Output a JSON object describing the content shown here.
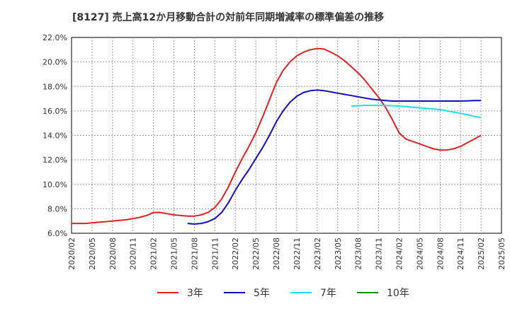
{
  "chart_data": {
    "type": "line",
    "title": "[8127]  売上高12か月移動合計の対前年同期増減率の標準偏差の推移",
    "xlabel": "",
    "ylabel": "",
    "x_ticks": [
      "2020/02",
      "2020/05",
      "2020/08",
      "2020/11",
      "2021/02",
      "2021/05",
      "2021/08",
      "2021/11",
      "2022/02",
      "2022/05",
      "2022/08",
      "2022/11",
      "2023/02",
      "2023/05",
      "2023/08",
      "2023/11",
      "2024/02",
      "2024/05",
      "2024/08",
      "2024/11",
      "2025/02",
      "2025/05"
    ],
    "y_ticks": [
      "6.0%",
      "8.0%",
      "10.0%",
      "12.0%",
      "14.0%",
      "16.0%",
      "18.0%",
      "20.0%",
      "22.0%"
    ],
    "ylim": [
      6.0,
      22.0
    ],
    "grid": true,
    "legend_position": "bottom",
    "series": [
      {
        "name": "3年",
        "color": "#dd2222",
        "values": [
          [
            "2020/02",
            6.8
          ],
          [
            "2020/03",
            6.8
          ],
          [
            "2020/04",
            6.8
          ],
          [
            "2020/05",
            6.85
          ],
          [
            "2020/06",
            6.9
          ],
          [
            "2020/07",
            6.95
          ],
          [
            "2020/08",
            7.0
          ],
          [
            "2020/09",
            7.05
          ],
          [
            "2020/10",
            7.1
          ],
          [
            "2020/11",
            7.2
          ],
          [
            "2020/12",
            7.3
          ],
          [
            "2021/01",
            7.45
          ],
          [
            "2021/02",
            7.7
          ],
          [
            "2021/03",
            7.7
          ],
          [
            "2021/04",
            7.6
          ],
          [
            "2021/05",
            7.5
          ],
          [
            "2021/06",
            7.45
          ],
          [
            "2021/07",
            7.4
          ],
          [
            "2021/08",
            7.4
          ],
          [
            "2021/09",
            7.5
          ],
          [
            "2021/10",
            7.7
          ],
          [
            "2021/11",
            8.1
          ],
          [
            "2021/12",
            8.8
          ],
          [
            "2022/01",
            9.8
          ],
          [
            "2022/02",
            11.0
          ],
          [
            "2022/03",
            12.1
          ],
          [
            "2022/04",
            13.1
          ],
          [
            "2022/05",
            14.2
          ],
          [
            "2022/06",
            15.5
          ],
          [
            "2022/07",
            16.9
          ],
          [
            "2022/08",
            18.3
          ],
          [
            "2022/09",
            19.3
          ],
          [
            "2022/10",
            20.0
          ],
          [
            "2022/11",
            20.5
          ],
          [
            "2022/12",
            20.8
          ],
          [
            "2023/01",
            21.0
          ],
          [
            "2023/02",
            21.1
          ],
          [
            "2023/03",
            21.05
          ],
          [
            "2023/04",
            20.8
          ],
          [
            "2023/05",
            20.5
          ],
          [
            "2023/06",
            20.1
          ],
          [
            "2023/07",
            19.6
          ],
          [
            "2023/08",
            19.1
          ],
          [
            "2023/09",
            18.5
          ],
          [
            "2023/10",
            17.8
          ],
          [
            "2023/11",
            17.1
          ],
          [
            "2023/12",
            16.3
          ],
          [
            "2024/01",
            15.3
          ],
          [
            "2024/02",
            14.2
          ],
          [
            "2024/03",
            13.7
          ],
          [
            "2024/04",
            13.5
          ],
          [
            "2024/05",
            13.3
          ],
          [
            "2024/06",
            13.1
          ],
          [
            "2024/07",
            12.9
          ],
          [
            "2024/08",
            12.8
          ],
          [
            "2024/09",
            12.8
          ],
          [
            "2024/10",
            12.9
          ],
          [
            "2024/11",
            13.1
          ],
          [
            "2024/12",
            13.4
          ],
          [
            "2025/01",
            13.7
          ],
          [
            "2025/02",
            14.0
          ]
        ]
      },
      {
        "name": "5年",
        "color": "#1111bb",
        "values": [
          [
            "2021/07",
            6.8
          ],
          [
            "2021/08",
            6.75
          ],
          [
            "2021/09",
            6.8
          ],
          [
            "2021/10",
            6.95
          ],
          [
            "2021/11",
            7.2
          ],
          [
            "2021/12",
            7.7
          ],
          [
            "2022/01",
            8.5
          ],
          [
            "2022/02",
            9.5
          ],
          [
            "2022/03",
            10.4
          ],
          [
            "2022/04",
            11.2
          ],
          [
            "2022/05",
            12.1
          ],
          [
            "2022/06",
            13.0
          ],
          [
            "2022/07",
            14.0
          ],
          [
            "2022/08",
            15.1
          ],
          [
            "2022/09",
            16.0
          ],
          [
            "2022/10",
            16.7
          ],
          [
            "2022/11",
            17.2
          ],
          [
            "2022/12",
            17.5
          ],
          [
            "2023/01",
            17.65
          ],
          [
            "2023/02",
            17.7
          ],
          [
            "2023/03",
            17.65
          ],
          [
            "2023/04",
            17.55
          ],
          [
            "2023/05",
            17.45
          ],
          [
            "2023/06",
            17.35
          ],
          [
            "2023/07",
            17.25
          ],
          [
            "2023/08",
            17.15
          ],
          [
            "2023/09",
            17.05
          ],
          [
            "2023/10",
            16.95
          ],
          [
            "2023/11",
            16.9
          ],
          [
            "2023/12",
            16.85
          ],
          [
            "2024/01",
            16.8
          ],
          [
            "2024/02",
            16.8
          ],
          [
            "2024/03",
            16.8
          ],
          [
            "2024/04",
            16.8
          ],
          [
            "2024/05",
            16.8
          ],
          [
            "2024/06",
            16.8
          ],
          [
            "2024/07",
            16.8
          ],
          [
            "2024/08",
            16.8
          ],
          [
            "2024/09",
            16.8
          ],
          [
            "2024/10",
            16.8
          ],
          [
            "2024/11",
            16.8
          ],
          [
            "2024/12",
            16.82
          ],
          [
            "2025/01",
            16.84
          ],
          [
            "2025/02",
            16.85
          ]
        ]
      },
      {
        "name": "7年",
        "color": "#22ddee",
        "values": [
          [
            "2023/07",
            16.4
          ],
          [
            "2023/08",
            16.42
          ],
          [
            "2023/09",
            16.45
          ],
          [
            "2023/10",
            16.45
          ],
          [
            "2023/11",
            16.45
          ],
          [
            "2023/12",
            16.45
          ],
          [
            "2024/01",
            16.42
          ],
          [
            "2024/02",
            16.4
          ],
          [
            "2024/03",
            16.35
          ],
          [
            "2024/04",
            16.3
          ],
          [
            "2024/05",
            16.25
          ],
          [
            "2024/06",
            16.2
          ],
          [
            "2024/07",
            16.15
          ],
          [
            "2024/08",
            16.1
          ],
          [
            "2024/09",
            16.0
          ],
          [
            "2024/10",
            15.9
          ],
          [
            "2024/11",
            15.8
          ],
          [
            "2024/12",
            15.7
          ],
          [
            "2025/01",
            15.55
          ],
          [
            "2025/02",
            15.45
          ]
        ]
      },
      {
        "name": "10年",
        "color": "#228822",
        "values": []
      }
    ]
  }
}
